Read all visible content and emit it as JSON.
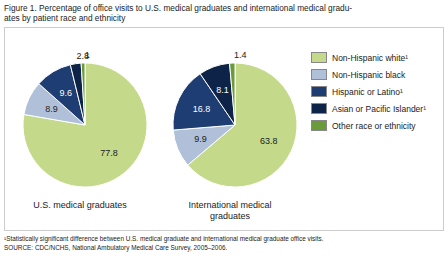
{
  "chart_data": {
    "type": "pie",
    "title": "Figure 1. Percentage of office visits to U.S. medical graduates and international medical gradu-\nates by patient race and ethnicity",
    "categories": [
      "Non-Hispanic white¹",
      "Non-Hispanic black",
      "Hispanic or Latino¹",
      "Asian or Pacific Islander¹",
      "Other race or ethnicity"
    ],
    "colors": [
      "#c5d98b",
      "#afc0d8",
      "#1e3d72",
      "#0d2347",
      "#6a9a3a"
    ],
    "series": [
      {
        "name": "U.S. medical graduates",
        "values": [
          77.8,
          8.9,
          9.6,
          2.8,
          1.0
        ]
      },
      {
        "name": "International medical\ngraduates",
        "values": [
          63.8,
          9.9,
          16.8,
          8.1,
          1.4
        ]
      }
    ],
    "data_labels": true,
    "legend": "right",
    "annotations": [
      "¹Statistically significant difference between U.S. medical graduate and international medical graduate office visits.",
      "SOURCE: CDC/NCHS, National Ambulatory Medical Care Survey, 2005–2006."
    ]
  }
}
